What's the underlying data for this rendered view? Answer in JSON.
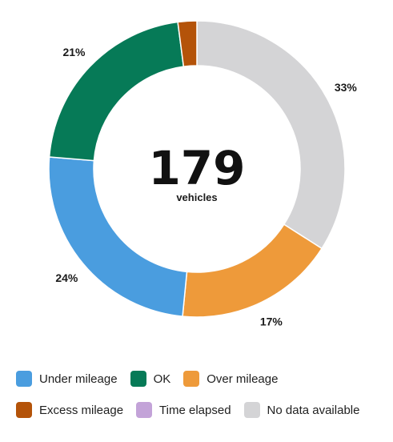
{
  "chart_data": {
    "type": "pie",
    "variant": "donut",
    "center": {
      "value": "179",
      "unit": "vehicles"
    },
    "slices": [
      {
        "name": "No data available",
        "value": 33,
        "label": "33%",
        "color": "#d4d4d6"
      },
      {
        "name": "Over mileage",
        "value": 17,
        "label": "17%",
        "color": "#ee9a3a"
      },
      {
        "name": "Under mileage",
        "value": 24,
        "label": "24%",
        "color": "#4a9ddf"
      },
      {
        "name": "OK",
        "value": 21,
        "label": "21%",
        "color": "#067a57"
      },
      {
        "name": "Excess mileage",
        "value": 2,
        "label": "",
        "color": "#b45309"
      }
    ],
    "legend": {
      "placement": "bottom",
      "rows": [
        [
          {
            "label": "Under mileage",
            "color": "#4a9ddf"
          },
          {
            "label": "OK",
            "color": "#067a57"
          },
          {
            "label": "Over mileage",
            "color": "#ee9a3a"
          }
        ],
        [
          {
            "label": "Excess mileage",
            "color": "#b45309"
          },
          {
            "label": "Time elapsed",
            "color": "#c3a3d8"
          },
          {
            "label": "No data available",
            "color": "#d4d4d6"
          }
        ]
      ]
    }
  }
}
